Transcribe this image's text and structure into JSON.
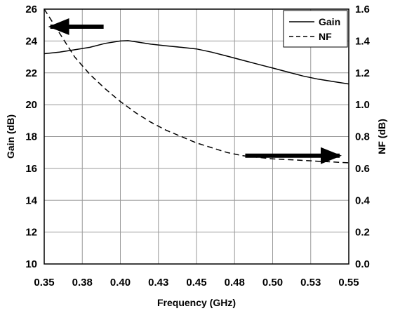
{
  "chart_data": {
    "type": "line",
    "xlabel": "Frequency (GHz)",
    "ylabel_left": "Gain (dB)",
    "ylabel_right": "NF (dB)",
    "xlim": [
      0.35,
      0.55
    ],
    "ylim_left": [
      10,
      26
    ],
    "ylim_right": [
      0.0,
      1.6
    ],
    "x_ticks": [
      "0.35",
      "0.38",
      "0.40",
      "0.43",
      "0.45",
      "0.48",
      "0.50",
      "0.53",
      "0.55"
    ],
    "y_left_ticks": [
      "10",
      "12",
      "14",
      "16",
      "18",
      "20",
      "22",
      "24",
      "26"
    ],
    "y_right_ticks": [
      "0.0",
      "0.2",
      "0.4",
      "0.6",
      "0.8",
      "1.0",
      "1.2",
      "1.4",
      "1.6"
    ],
    "grid": true,
    "legend": {
      "placement": "top-right",
      "entries": [
        "Gain",
        "NF"
      ]
    },
    "series": [
      {
        "name": "Gain",
        "axis": "left",
        "style": "solid",
        "x": [
          0.35,
          0.36,
          0.37,
          0.38,
          0.39,
          0.4,
          0.405,
          0.41,
          0.42,
          0.43,
          0.44,
          0.45,
          0.46,
          0.47,
          0.48,
          0.49,
          0.5,
          0.51,
          0.52,
          0.53,
          0.54,
          0.55
        ],
        "y": [
          23.2,
          23.3,
          23.45,
          23.6,
          23.85,
          24.0,
          24.02,
          23.95,
          23.8,
          23.7,
          23.6,
          23.5,
          23.3,
          23.05,
          22.8,
          22.55,
          22.3,
          22.05,
          21.8,
          21.6,
          21.45,
          21.3
        ]
      },
      {
        "name": "NF",
        "axis": "right",
        "style": "dashed",
        "x": [
          0.35,
          0.36,
          0.37,
          0.38,
          0.39,
          0.4,
          0.41,
          0.42,
          0.43,
          0.44,
          0.45,
          0.46,
          0.47,
          0.48,
          0.49,
          0.5,
          0.51,
          0.52,
          0.53,
          0.54,
          0.55
        ],
        "y": [
          1.6,
          1.45,
          1.3,
          1.19,
          1.1,
          1.02,
          0.95,
          0.89,
          0.84,
          0.8,
          0.76,
          0.73,
          0.7,
          0.68,
          0.67,
          0.66,
          0.655,
          0.65,
          0.645,
          0.64,
          0.635
        ]
      }
    ],
    "annotations": [
      {
        "type": "arrow",
        "direction": "left",
        "meaning": "Gain uses left axis",
        "x_from": 0.389,
        "x_to": 0.354,
        "y_left": 24.9
      },
      {
        "type": "arrow",
        "direction": "right",
        "meaning": "NF uses right axis",
        "x_from": 0.482,
        "x_to": 0.544,
        "y_left": 16.8
      }
    ]
  }
}
